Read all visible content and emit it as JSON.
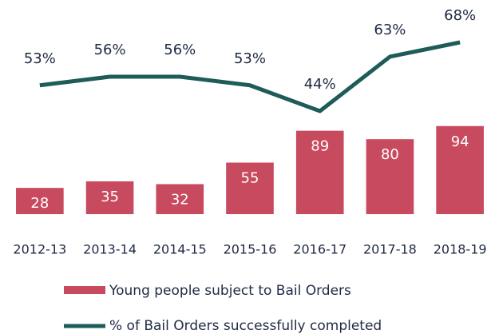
{
  "chart_data": {
    "type": "combo",
    "categories": [
      "2012-13",
      "2013-14",
      "2014-15",
      "2015-16",
      "2016-17",
      "2017-18",
      "2018-19"
    ],
    "series": [
      {
        "name": "Young people subject to Bail Orders",
        "type": "bar",
        "color": "#c84a5e",
        "values": [
          28,
          35,
          32,
          55,
          89,
          80,
          94
        ]
      },
      {
        "name": "% of Bail Orders successfully completed",
        "type": "line",
        "axis": "y2",
        "color": "#1d5c58",
        "values": [
          53,
          56,
          56,
          53,
          44,
          63,
          68
        ],
        "value_labels": [
          "53%",
          "56%",
          "56%",
          "53%",
          "44%",
          "63%",
          "68%"
        ]
      }
    ],
    "ylim": [
      0,
      220
    ],
    "y2lim": [
      8,
      80
    ]
  }
}
